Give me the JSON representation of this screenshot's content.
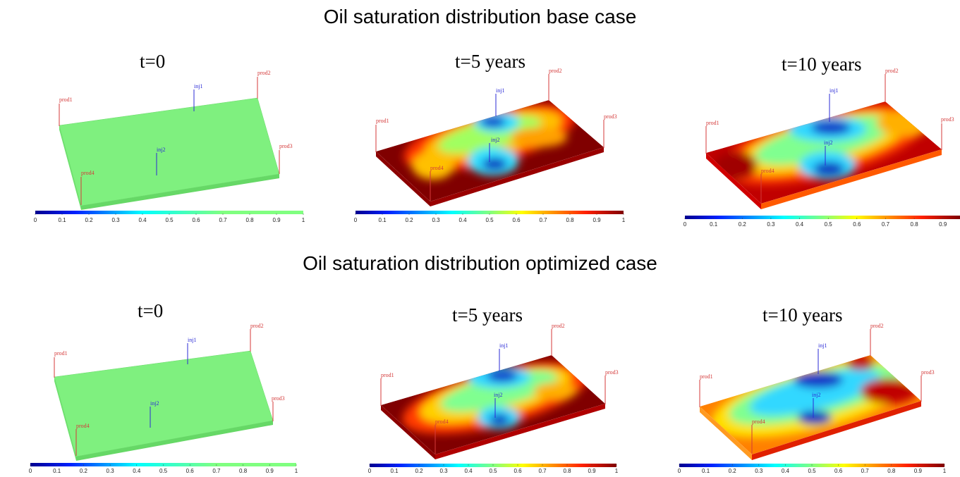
{
  "rows": [
    {
      "title": "Oil saturation distribution base case",
      "panels": [
        {
          "time_label": "t=0",
          "wells": {
            "prod1": "prod1",
            "prod2": "prod2",
            "prod3": "prod3",
            "prod4": "prod4",
            "inj1": "inj1",
            "inj2": "inj2"
          },
          "colorbar_ticks": [
            "0",
            "0.1",
            "0.2",
            "0.3",
            "0.4",
            "0.5",
            "0.6",
            "0.7",
            "0.8",
            "0.9",
            "1"
          ]
        },
        {
          "time_label": "t=5 years",
          "wells": {
            "prod1": "prod1",
            "prod2": "prod2",
            "prod3": "prod3",
            "prod4": "prod4",
            "inj1": "inj1",
            "inj2": "inj2"
          },
          "colorbar_ticks": [
            "0",
            "0.1",
            "0.2",
            "0.3",
            "0.4",
            "0.5",
            "0.6",
            "0.7",
            "0.8",
            "0.9",
            "1"
          ]
        },
        {
          "time_label": "t=10 years",
          "wells": {
            "prod1": "prod1",
            "prod2": "prod2",
            "prod3": "prod3",
            "prod4": "prod4",
            "inj1": "inj1",
            "inj2": "inj2"
          },
          "colorbar_ticks": [
            "0",
            "0.1",
            "0.2",
            "0.3",
            "0.4",
            "0.5",
            "0.6",
            "0.7",
            "0.8",
            "0.9"
          ]
        }
      ]
    },
    {
      "title": "Oil saturation distribution optimized case",
      "panels": [
        {
          "time_label": "t=0",
          "wells": {
            "prod1": "prod1",
            "prod2": "prod2",
            "prod3": "prod3",
            "prod4": "prod4",
            "inj1": "inj1",
            "inj2": "inj2"
          },
          "colorbar_ticks": [
            "0",
            "0.1",
            "0.2",
            "0.3",
            "0.4",
            "0.5",
            "0.6",
            "0.7",
            "0.8",
            "0.9",
            "1"
          ]
        },
        {
          "time_label": "t=5 years",
          "wells": {
            "prod1": "prod1",
            "prod2": "prod2",
            "prod3": "prod3",
            "prod4": "prod4",
            "inj1": "inj1",
            "inj2": "inj2"
          },
          "colorbar_ticks": [
            "0",
            "0.1",
            "0.2",
            "0.3",
            "0.4",
            "0.5",
            "0.6",
            "0.7",
            "0.8",
            "0.9",
            "1"
          ]
        },
        {
          "time_label": "t=10 years",
          "wells": {
            "prod1": "prod1",
            "prod2": "prod2",
            "prod3": "prod3",
            "prod4": "prod4",
            "inj1": "inj1",
            "inj2": "inj2"
          },
          "colorbar_ticks": [
            "0",
            "0.1",
            "0.2",
            "0.3",
            "0.4",
            "0.5",
            "0.6",
            "0.7",
            "0.8",
            "0.9",
            "1"
          ]
        }
      ]
    }
  ],
  "colors": {
    "uniform_saturation": "#7ff07f",
    "injector_well": "#2b2bd6",
    "producer_well": "#d43a3a",
    "high_saturation": "#800000",
    "low_saturation": "#1838c8"
  }
}
